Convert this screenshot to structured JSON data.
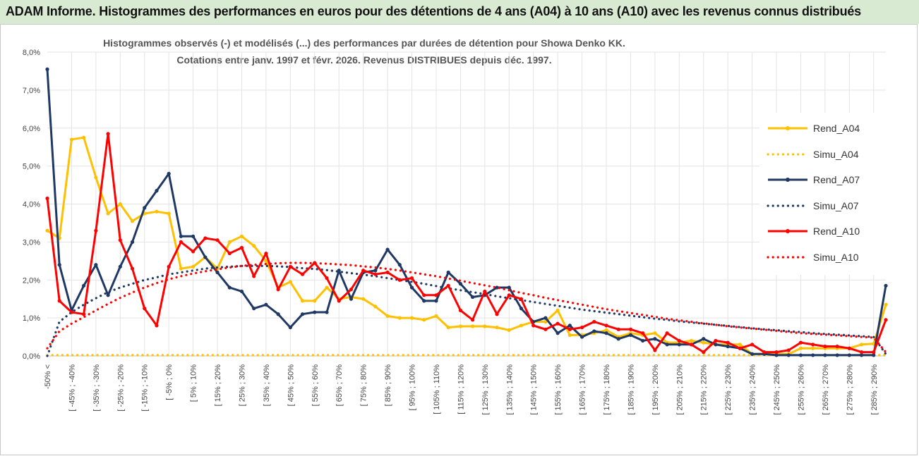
{
  "banner": {
    "title": "ADAM Informe. Histogrammes des performances en euros pour des détentions de 4 ans (A04) à 10 ans (A10) avec les revenus connus distribués"
  },
  "chart_data": {
    "type": "line",
    "title": "Histogrammes observés (-) et modélisés (...) des performances par durées de détention pour Showa Denko KK.",
    "subtitle": "Cotations entre janv. 1997 et févr. 2026. Revenus DISTRIBUES depuis déc. 1997.",
    "xlabel": "",
    "ylabel": "",
    "ylim": [
      0,
      8
    ],
    "grid": true,
    "legend_position": "right",
    "y_ticks": [
      "0,0%",
      "1,0%",
      "2,0%",
      "3,0%",
      "4,0%",
      "5,0%",
      "6,0%",
      "7,0%",
      "8,0%"
    ],
    "x_tick_labels": [
      "-50% <",
      "[ -45% ; -40%",
      "[ -35% ; -30%",
      "[ -25% ; -20%",
      "[ -15% ; -10%",
      "[ -5% ; 0%",
      "[ 5% ; 10%",
      "[ 15% ; 20%",
      "[ 25% ; 30%",
      "[ 35% ; 40%",
      "[ 45% ; 50%",
      "[ 55% ; 60%",
      "[ 65% ; 70%",
      "[ 75% ; 80%",
      "[ 85% ; 90%",
      "[ 95% ; 100%",
      "[ 105% ; 110%",
      "[ 115% ; 120%",
      "[ 125% ; 130%",
      "[ 135% ; 140%",
      "[ 145% ; 150%",
      "[ 155% ; 160%",
      "[ 165% ; 170%",
      "[ 175% ; 180%",
      "[ 185% ; 190%",
      "[ 195% ; 200%",
      "[ 205% ; 210%",
      "[ 215% ; 220%",
      "[ 225% ; 230%",
      "[ 235% ; 240%",
      "[ 245% ; 250%",
      "[ 255% ; 260%",
      "[ 265% ; 270%",
      "[ 275% ; 280%",
      "[ 285% ; 290%"
    ],
    "series": [
      {
        "name": "Rend_A04",
        "style": "solid",
        "color": "#ffc000",
        "values": [
          3.3,
          3.1,
          5.7,
          5.75,
          4.7,
          3.75,
          4.0,
          3.55,
          3.75,
          3.8,
          3.75,
          2.3,
          2.35,
          2.6,
          2.3,
          3.0,
          3.15,
          2.9,
          2.5,
          1.8,
          1.95,
          1.45,
          1.45,
          1.8,
          1.5,
          1.55,
          1.5,
          1.3,
          1.05,
          1.0,
          1.0,
          0.95,
          1.05,
          0.75,
          0.78,
          0.78,
          0.78,
          0.75,
          0.68,
          0.8,
          0.9,
          0.9,
          1.2,
          0.55,
          0.55,
          0.6,
          0.68,
          0.5,
          0.6,
          0.55,
          0.6,
          0.35,
          0.35,
          0.4,
          0.35,
          0.3,
          0.3,
          0.3,
          0.05,
          0.05,
          0.05,
          0.05,
          0.2,
          0.2,
          0.2,
          0.2,
          0.2,
          0.3,
          0.32,
          1.35
        ]
      },
      {
        "name": "Simu_A04",
        "style": "dotted",
        "color": "#ffc000",
        "values": [
          0.02,
          0.02,
          0.02,
          0.02,
          0.02,
          0.02,
          0.02,
          0.02,
          0.02,
          0.02,
          0.02,
          0.02,
          0.02,
          0.02,
          0.02,
          0.02,
          0.02,
          0.02,
          0.02,
          0.02,
          0.02,
          0.02,
          0.02,
          0.02,
          0.02,
          0.02,
          0.02,
          0.02,
          0.02,
          0.02,
          0.02,
          0.02,
          0.02,
          0.02,
          0.02,
          0.02,
          0.02,
          0.02,
          0.02,
          0.02,
          0.02,
          0.02,
          0.02,
          0.02,
          0.02,
          0.02,
          0.02,
          0.02,
          0.02,
          0.02,
          0.02,
          0.02,
          0.02,
          0.02,
          0.02,
          0.02,
          0.02,
          0.02,
          0.02,
          0.02,
          0.02,
          0.02,
          0.02,
          0.02,
          0.02,
          0.02,
          0.02,
          0.02,
          0.02,
          0.02
        ]
      },
      {
        "name": "Rend_A07",
        "style": "solid",
        "color": "#1f3864",
        "values": [
          7.55,
          2.4,
          1.2,
          1.85,
          2.4,
          1.6,
          2.35,
          3.0,
          3.9,
          4.35,
          4.8,
          3.15,
          3.15,
          2.6,
          2.2,
          1.8,
          1.7,
          1.25,
          1.35,
          1.1,
          0.75,
          1.1,
          1.15,
          1.15,
          2.25,
          1.5,
          2.2,
          2.25,
          2.8,
          2.4,
          1.8,
          1.45,
          1.45,
          2.2,
          1.9,
          1.55,
          1.6,
          1.8,
          1.8,
          1.25,
          0.9,
          1.0,
          0.6,
          0.8,
          0.5,
          0.65,
          0.6,
          0.45,
          0.55,
          0.4,
          0.45,
          0.3,
          0.3,
          0.3,
          0.45,
          0.3,
          0.25,
          0.2,
          0.05,
          0.05,
          0.02,
          0.02,
          0.02,
          0.02,
          0.02,
          0.02,
          0.02,
          0.02,
          0.02,
          1.85
        ]
      },
      {
        "name": "Simu_A07",
        "style": "dotted",
        "color": "#1f3864",
        "values": [
          0.0,
          0.9,
          1.15,
          1.35,
          1.52,
          1.68,
          1.8,
          1.9,
          2.0,
          2.07,
          2.15,
          2.2,
          2.25,
          2.3,
          2.33,
          2.35,
          2.37,
          2.37,
          2.37,
          2.36,
          2.34,
          2.31,
          2.29,
          2.26,
          2.22,
          2.18,
          2.14,
          2.1,
          2.05,
          2.0,
          1.95,
          1.9,
          1.84,
          1.78,
          1.73,
          1.68,
          1.63,
          1.57,
          1.52,
          1.47,
          1.42,
          1.37,
          1.32,
          1.27,
          1.22,
          1.18,
          1.14,
          1.1,
          1.06,
          1.02,
          0.98,
          0.95,
          0.91,
          0.88,
          0.85,
          0.82,
          0.79,
          0.76,
          0.73,
          0.7,
          0.68,
          0.65,
          0.63,
          0.6,
          0.58,
          0.56,
          0.54,
          0.52,
          0.5,
          0.05
        ]
      },
      {
        "name": "Rend_A10",
        "style": "solid",
        "color": "#ff0000",
        "values": [
          4.15,
          1.45,
          1.15,
          1.1,
          3.3,
          5.85,
          3.05,
          2.3,
          1.25,
          0.8,
          2.35,
          3.0,
          2.75,
          3.1,
          3.05,
          2.7,
          2.85,
          2.1,
          2.7,
          1.75,
          2.35,
          2.15,
          2.45,
          2.05,
          1.45,
          1.75,
          2.25,
          2.15,
          2.2,
          2.0,
          2.05,
          1.6,
          1.6,
          1.85,
          1.2,
          0.95,
          1.7,
          1.1,
          1.6,
          1.5,
          0.8,
          0.7,
          0.85,
          0.7,
          0.75,
          0.9,
          0.8,
          0.7,
          0.7,
          0.6,
          0.15,
          0.6,
          0.4,
          0.3,
          0.1,
          0.4,
          0.35,
          0.2,
          0.3,
          0.1,
          0.1,
          0.15,
          0.35,
          0.3,
          0.25,
          0.25,
          0.2,
          0.1,
          0.1,
          0.95
        ]
      },
      {
        "name": "Simu_A10",
        "style": "dotted",
        "color": "#ff0000",
        "values": [
          0.2,
          0.65,
          0.85,
          1.02,
          1.2,
          1.37,
          1.53,
          1.67,
          1.8,
          1.92,
          2.02,
          2.1,
          2.17,
          2.23,
          2.28,
          2.33,
          2.37,
          2.4,
          2.42,
          2.44,
          2.45,
          2.45,
          2.44,
          2.43,
          2.41,
          2.39,
          2.36,
          2.33,
          2.29,
          2.25,
          2.2,
          2.15,
          2.1,
          2.04,
          1.98,
          1.92,
          1.86,
          1.8,
          1.73,
          1.66,
          1.6,
          1.53,
          1.47,
          1.41,
          1.35,
          1.29,
          1.23,
          1.18,
          1.13,
          1.08,
          1.03,
          0.98,
          0.94,
          0.9,
          0.86,
          0.82,
          0.78,
          0.75,
          0.72,
          0.69,
          0.66,
          0.63,
          0.6,
          0.58,
          0.56,
          0.54,
          0.52,
          0.5,
          0.48,
          0.1
        ]
      }
    ]
  }
}
